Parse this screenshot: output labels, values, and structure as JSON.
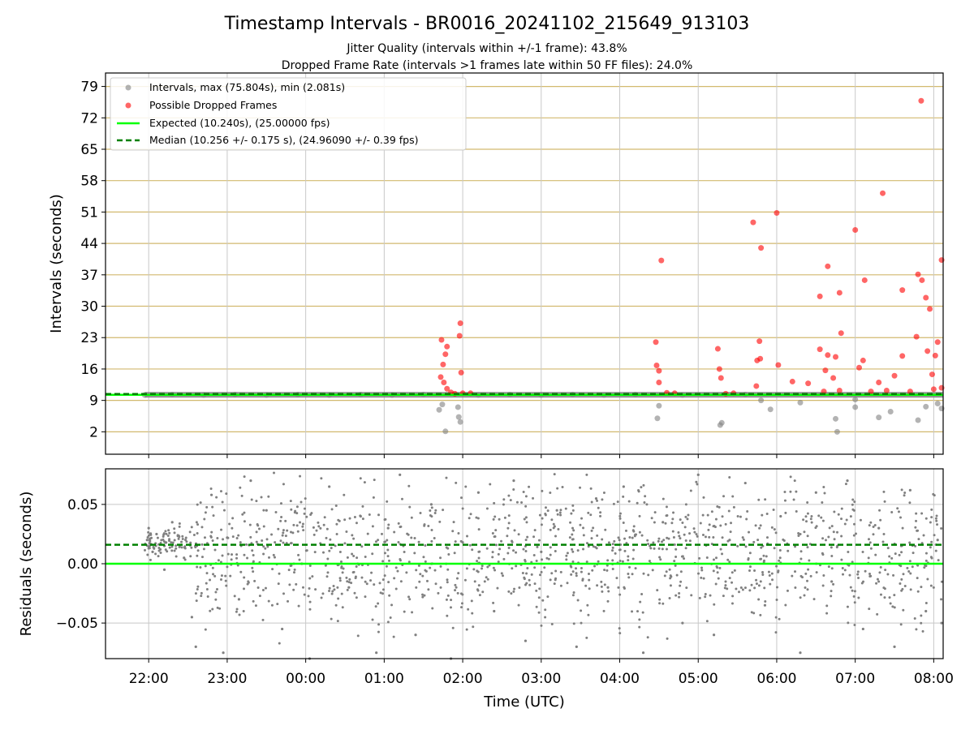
{
  "title": "Timestamp Intervals - BR0016_20241102_215649_913103",
  "subtitle_1": "Jitter Quality (intervals within +/-1 frame): 43.8%",
  "subtitle_2": "Dropped Frame Rate (intervals >1 frames late within 50 FF files): 24.0%",
  "colors": {
    "interval_points": "#808080",
    "dropped_points": "#ff0000",
    "expected_line": "#00ff00",
    "median_line": "#008000",
    "top_grid": "#d2b96f",
    "grid": "#c8c8c8"
  },
  "chart_data": [
    {
      "type": "scatter",
      "ylabel": "Intervals (seconds)",
      "ylim": [
        -3,
        82
      ],
      "yticks": [
        "2",
        "9",
        "16",
        "23",
        "30",
        "37",
        "44",
        "51",
        "58",
        "65",
        "72",
        "79"
      ],
      "ytick_values": [
        2,
        9,
        16,
        23,
        30,
        37,
        44,
        51,
        58,
        65,
        72,
        79
      ],
      "xlim_hours": [
        21.45,
        32.12
      ],
      "legend_position": "top-left",
      "legend": {
        "intervals": "Intervals, max (75.804s), min (2.081s)",
        "dropped": "Possible Dropped Frames",
        "expected": "Expected (10.240s), (25.00000 fps)",
        "median": "Median (10.256 +/- 0.175 s), (24.96090 +/- 0.39 fps)"
      },
      "expected_value": 10.24,
      "median_value": 10.256,
      "baseline": {
        "x_start": 21.95,
        "x_end": 32.12,
        "y": 10.24
      },
      "series": [
        {
          "name": "Intervals, max (75.804s), min (2.081s)",
          "points": [
            [
              21.95,
              10.2
            ],
            [
              22.3,
              10.3
            ],
            [
              22.7,
              10.2
            ],
            [
              23.1,
              10.3
            ],
            [
              23.5,
              10.2
            ],
            [
              23.9,
              10.3
            ],
            [
              24.3,
              10.2
            ],
            [
              24.7,
              10.3
            ],
            [
              25.1,
              10.2
            ],
            [
              25.5,
              10.3
            ],
            [
              25.7,
              6.9
            ],
            [
              25.74,
              8.1
            ],
            [
              25.78,
              2.1
            ],
            [
              25.95,
              5.3
            ],
            [
              25.97,
              4.2
            ],
            [
              25.94,
              7.5
            ],
            [
              26.2,
              10.2
            ],
            [
              26.6,
              10.3
            ],
            [
              27.0,
              10.2
            ],
            [
              27.4,
              10.3
            ],
            [
              27.8,
              10.2
            ],
            [
              28.2,
              10.3
            ],
            [
              28.48,
              5.0
            ],
            [
              28.5,
              7.8
            ],
            [
              28.8,
              10.2
            ],
            [
              29.28,
              3.5
            ],
            [
              29.3,
              4.0
            ],
            [
              29.6,
              10.3
            ],
            [
              29.8,
              9.0
            ],
            [
              29.92,
              7.0
            ],
            [
              30.3,
              8.5
            ],
            [
              30.75,
              4.9
            ],
            [
              30.77,
              2.0
            ],
            [
              31.0,
              7.5
            ],
            [
              31.0,
              9.2
            ],
            [
              31.3,
              5.2
            ],
            [
              31.45,
              6.5
            ],
            [
              31.8,
              4.6
            ],
            [
              31.9,
              7.6
            ],
            [
              32.05,
              8.3
            ],
            [
              32.1,
              7.2
            ]
          ]
        },
        {
          "name": "Possible Dropped Frames",
          "points": [
            [
              25.73,
              22.5
            ],
            [
              25.75,
              17.0
            ],
            [
              25.78,
              19.3
            ],
            [
              25.8,
              21.0
            ],
            [
              25.72,
              14.2
            ],
            [
              25.76,
              13.0
            ],
            [
              25.96,
              23.4
            ],
            [
              25.97,
              26.2
            ],
            [
              25.98,
              15.2
            ],
            [
              25.8,
              11.6
            ],
            [
              25.85,
              10.8
            ],
            [
              25.9,
              10.5
            ],
            [
              26.0,
              10.6
            ],
            [
              26.1,
              10.6
            ],
            [
              28.46,
              22.0
            ],
            [
              28.47,
              16.8
            ],
            [
              28.5,
              15.6
            ],
            [
              28.5,
              13.0
            ],
            [
              28.53,
              40.2
            ],
            [
              28.6,
              10.7
            ],
            [
              28.7,
              10.6
            ],
            [
              29.25,
              20.5
            ],
            [
              29.27,
              16.0
            ],
            [
              29.29,
              14.0
            ],
            [
              29.35,
              10.5
            ],
            [
              29.45,
              10.6
            ],
            [
              29.7,
              48.7
            ],
            [
              29.8,
              43.0
            ],
            [
              29.75,
              17.9
            ],
            [
              29.78,
              22.2
            ],
            [
              29.79,
              18.3
            ],
            [
              29.74,
              12.2
            ],
            [
              30.0,
              50.8
            ],
            [
              30.02,
              16.9
            ],
            [
              30.2,
              13.2
            ],
            [
              30.4,
              12.8
            ],
            [
              30.55,
              32.2
            ],
            [
              30.65,
              38.9
            ],
            [
              30.8,
              33.0
            ],
            [
              30.82,
              24.0
            ],
            [
              30.55,
              20.4
            ],
            [
              30.65,
              19.1
            ],
            [
              30.75,
              18.7
            ],
            [
              30.62,
              15.7
            ],
            [
              30.72,
              14.0
            ],
            [
              31.0,
              47.0
            ],
            [
              31.05,
              16.3
            ],
            [
              31.1,
              17.9
            ],
            [
              31.12,
              35.8
            ],
            [
              31.35,
              55.2
            ],
            [
              31.3,
              13.0
            ],
            [
              31.5,
              14.5
            ],
            [
              31.6,
              33.6
            ],
            [
              31.6,
              18.9
            ],
            [
              31.8,
              37.1
            ],
            [
              31.85,
              35.8
            ],
            [
              31.9,
              31.9
            ],
            [
              31.78,
              23.2
            ],
            [
              31.92,
              20.0
            ],
            [
              31.95,
              29.4
            ],
            [
              31.84,
              75.8
            ],
            [
              32.05,
              22.0
            ],
            [
              32.02,
              19.0
            ],
            [
              32.1,
              40.3
            ],
            [
              31.98,
              14.8
            ],
            [
              30.6,
              11.0
            ],
            [
              30.8,
              11.2
            ],
            [
              31.2,
              11.0
            ],
            [
              31.4,
              11.2
            ],
            [
              31.7,
              11.0
            ],
            [
              32.0,
              11.5
            ],
            [
              32.1,
              11.8
            ]
          ]
        }
      ]
    },
    {
      "type": "scatter",
      "ylabel": "Residuals (seconds)",
      "xlabel": "Time (UTC)",
      "ylim": [
        -0.08,
        0.08
      ],
      "yticks": [
        "0.05",
        "0.00",
        "−0.05"
      ],
      "ytick_values": [
        0.05,
        0.0,
        -0.05
      ],
      "xlim_hours": [
        21.45,
        32.12
      ],
      "xticks": [
        "22:00",
        "23:00",
        "00:00",
        "01:00",
        "02:00",
        "03:00",
        "04:00",
        "05:00",
        "06:00",
        "07:00",
        "08:00"
      ],
      "xtick_values": [
        22,
        23,
        24,
        25,
        26,
        27,
        28,
        29,
        30,
        31,
        32
      ],
      "expected_residual": 0.0,
      "median_residual": 0.016,
      "points": [
        [
          21.98,
          0.02
        ],
        [
          22.0,
          0.03
        ],
        [
          22.05,
          0.01
        ],
        [
          22.1,
          0.025
        ],
        [
          22.2,
          -0.005
        ],
        [
          22.3,
          0.035
        ],
        [
          22.45,
          0.005
        ],
        [
          22.55,
          -0.045
        ],
        [
          22.6,
          -0.07
        ],
        [
          22.8,
          0.058
        ],
        [
          22.95,
          -0.075
        ],
        [
          23.0,
          0.022
        ],
        [
          23.15,
          -0.03
        ],
        [
          23.3,
          0.07
        ],
        [
          23.5,
          0.045
        ],
        [
          23.7,
          -0.055
        ],
        [
          23.95,
          0.0
        ],
        [
          24.05,
          -0.08
        ],
        [
          24.3,
          0.065
        ],
        [
          24.55,
          -0.02
        ],
        [
          24.7,
          0.04
        ],
        [
          24.9,
          -0.075
        ],
        [
          25.05,
          0.03
        ],
        [
          25.2,
          0.075
        ],
        [
          25.4,
          -0.06
        ],
        [
          25.6,
          0.05
        ],
        [
          25.85,
          -0.08
        ],
        [
          26.0,
          0.018
        ],
        [
          26.2,
          0.06
        ],
        [
          26.4,
          -0.04
        ],
        [
          26.65,
          0.07
        ],
        [
          26.8,
          -0.065
        ],
        [
          27.0,
          0.01
        ],
        [
          27.2,
          0.045
        ],
        [
          27.45,
          -0.07
        ],
        [
          27.7,
          0.055
        ],
        [
          27.85,
          -0.02
        ],
        [
          28.05,
          0.065
        ],
        [
          28.3,
          -0.075
        ],
        [
          28.55,
          0.035
        ],
        [
          28.8,
          -0.05
        ],
        [
          29.0,
          0.075
        ],
        [
          29.2,
          -0.06
        ],
        [
          29.4,
          0.02
        ],
        [
          29.6,
          0.068
        ],
        [
          29.85,
          -0.035
        ],
        [
          30.05,
          0.04
        ],
        [
          30.3,
          -0.075
        ],
        [
          30.5,
          0.06
        ],
        [
          30.7,
          -0.015
        ],
        [
          30.9,
          0.07
        ],
        [
          31.1,
          -0.055
        ],
        [
          31.3,
          0.03
        ],
        [
          31.5,
          -0.07
        ],
        [
          31.7,
          0.062
        ],
        [
          31.9,
          -0.04
        ],
        [
          32.05,
          0.02
        ],
        [
          32.1,
          -0.05
        ]
      ]
    }
  ]
}
